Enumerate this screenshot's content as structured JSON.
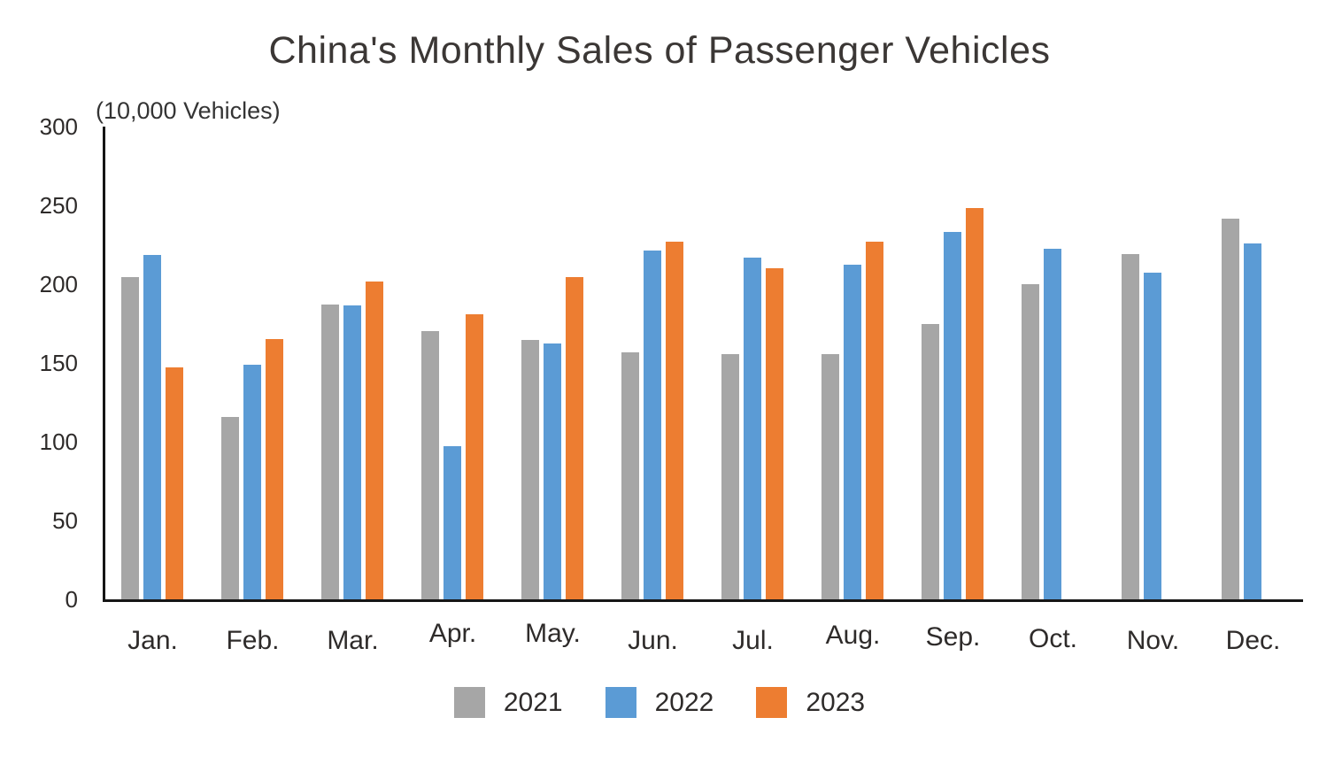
{
  "chart_data": {
    "type": "bar",
    "title": "China's Monthly Sales of Passenger Vehicles",
    "unit_label": "(10,000 Vehicles)",
    "categories": [
      "Jan.",
      "Feb.",
      "Mar.",
      "Apr.",
      "May.",
      "Jun.",
      "Jul.",
      "Aug.",
      "Sep.",
      "Oct.",
      "Nov.",
      "Dec."
    ],
    "series": [
      {
        "name": "2021",
        "color": "#A6A6A6",
        "values": [
          204.5,
          116,
          187,
          170.5,
          164.5,
          157,
          155.5,
          155.5,
          175,
          200,
          219,
          241.5
        ]
      },
      {
        "name": "2022",
        "color": "#5B9BD5",
        "values": [
          218.5,
          149,
          186.5,
          97,
          162.5,
          221.5,
          217,
          212.5,
          233,
          222.5,
          207.5,
          226
        ]
      },
      {
        "name": "2023",
        "color": "#ED7D31",
        "values": [
          147,
          165,
          201.5,
          181,
          204.5,
          227,
          210,
          227,
          248.5,
          null,
          null,
          null
        ]
      }
    ],
    "ylim": [
      0,
      300
    ],
    "yticks": [
      0,
      50,
      100,
      150,
      200,
      250,
      300
    ],
    "grid": false,
    "legend_position": "bottom",
    "axis_color": "#161616",
    "text_color": "#2e2b2a"
  }
}
